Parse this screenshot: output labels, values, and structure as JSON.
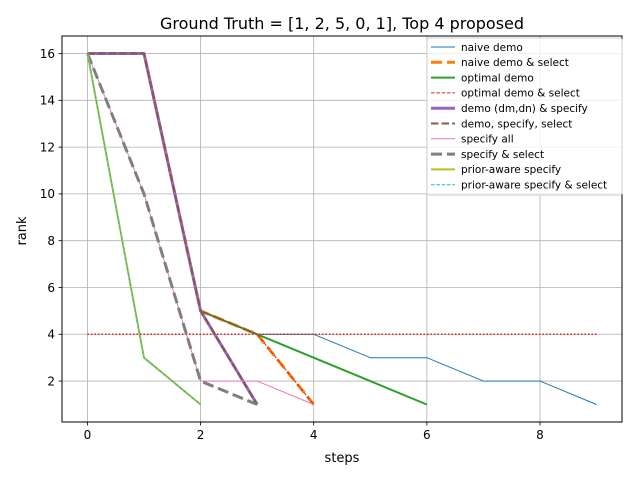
{
  "chart_data": {
    "type": "line",
    "title": "Ground Truth = [1, 2, 5, 0, 1], Top 4 proposed",
    "xlabel": "steps",
    "ylabel": "rank",
    "xlim": [
      -0.45,
      9.45
    ],
    "ylim": [
      0.25,
      16.75
    ],
    "xticks": [
      0,
      2,
      4,
      6,
      8
    ],
    "yticks": [
      2,
      4,
      6,
      8,
      10,
      12,
      14,
      16
    ],
    "grid": true,
    "legend_position": "top-right",
    "reference_line": {
      "y": 4,
      "x_range": [
        0,
        9
      ],
      "color": "#d62728",
      "style": "dotted"
    },
    "series": [
      {
        "name": "naive demo",
        "color": "#1f77b4",
        "style": "solid",
        "width": 1,
        "x": [
          0,
          1,
          2,
          3,
          4,
          5,
          6,
          7,
          8,
          9
        ],
        "y": [
          16,
          16,
          5,
          4,
          4,
          3,
          3,
          2,
          2,
          1
        ]
      },
      {
        "name": "naive demo & select",
        "color": "#ff7f0e",
        "style": "dashed",
        "width": 3,
        "x": [
          0,
          1,
          2,
          3,
          4
        ],
        "y": [
          16,
          16,
          5,
          4,
          1
        ]
      },
      {
        "name": "optimal demo",
        "color": "#2ca02c",
        "style": "solid",
        "width": 2,
        "x": [
          0,
          1,
          2,
          3,
          4,
          5,
          6
        ],
        "y": [
          16,
          16,
          5,
          4,
          3,
          2,
          1
        ]
      },
      {
        "name": "optimal demo & select",
        "color": "#d62728",
        "style": "dashed",
        "width": 1,
        "x": [
          0,
          1,
          2,
          3,
          4
        ],
        "y": [
          16,
          16,
          5,
          4,
          1
        ]
      },
      {
        "name": "demo (dm,dn) & specify",
        "color": "#9467bd",
        "style": "solid",
        "width": 3,
        "x": [
          0,
          1,
          2,
          3
        ],
        "y": [
          16,
          16,
          5,
          1
        ]
      },
      {
        "name": "demo, specify, select",
        "color": "#8c564b",
        "style": "dashed",
        "width": 2,
        "x": [
          0,
          1,
          2,
          3
        ],
        "y": [
          16,
          16,
          5,
          1
        ]
      },
      {
        "name": "specify all",
        "color": "#e377c2",
        "style": "solid",
        "width": 1,
        "x": [
          0,
          1,
          2,
          3,
          4
        ],
        "y": [
          16,
          10,
          2,
          2,
          1
        ]
      },
      {
        "name": "specify & select",
        "color": "#7f7f7f",
        "style": "dashed",
        "width": 3,
        "x": [
          0,
          1,
          2,
          3
        ],
        "y": [
          16,
          10,
          2,
          1
        ]
      },
      {
        "name": "prior-aware specify",
        "color": "#bcbd22",
        "style": "solid",
        "width": 2,
        "x": [
          0,
          1,
          2
        ],
        "y": [
          16,
          3,
          1
        ]
      },
      {
        "name": "prior-aware specify & select",
        "color": "#17becf",
        "style": "dashed",
        "width": 1,
        "x": [
          0,
          1,
          2
        ],
        "y": [
          16,
          3,
          1
        ]
      }
    ]
  }
}
